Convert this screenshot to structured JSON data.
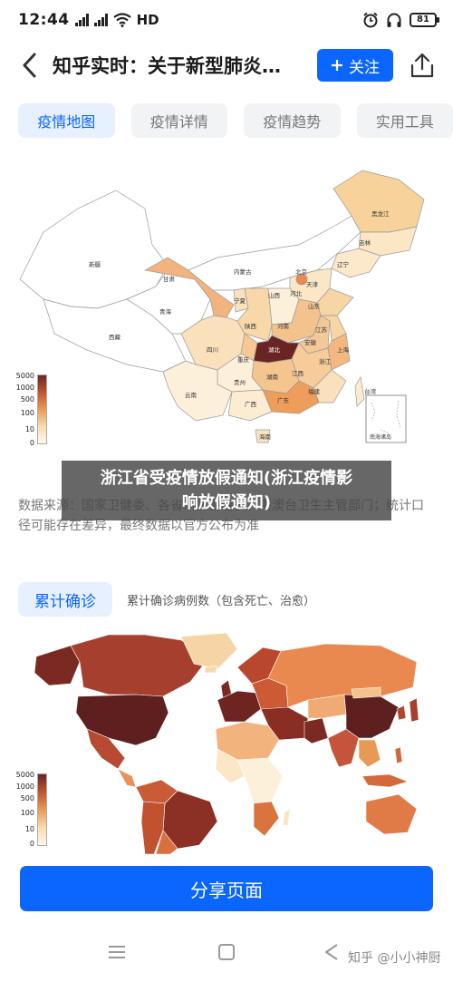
{
  "status": {
    "time": "12:44",
    "network": "HD",
    "battery": "81"
  },
  "nav": {
    "title": "知乎实时：关于新型肺炎…",
    "follow_label": "关注"
  },
  "tabs": [
    {
      "label": "疫情地图",
      "active": true
    },
    {
      "label": "疫情详情",
      "active": false
    },
    {
      "label": "疫情趋势",
      "active": false
    },
    {
      "label": "实用工具",
      "active": false
    }
  ],
  "china_map": {
    "legend": [
      "5000",
      "1000",
      "500",
      "100",
      "10",
      "0"
    ],
    "provinces": [
      "新疆",
      "西藏",
      "青海",
      "甘肃",
      "内蒙古",
      "黑龙江",
      "吉林",
      "辽宁",
      "北京",
      "天津",
      "河北",
      "山西",
      "陕西",
      "宁夏",
      "四川",
      "重庆",
      "湖北",
      "河南",
      "山东",
      "安徽",
      "江苏",
      "上海",
      "浙江",
      "江西",
      "湖南",
      "贵州",
      "云南",
      "广西",
      "广东",
      "福建",
      "台湾",
      "海南"
    ],
    "inset": "南海诸岛"
  },
  "overlay": {
    "line1": "浙江省受疫情放假通知(浙江疫情影",
    "line2": "响放假通知)"
  },
  "data_source": "数据来源：国家卫健委、各省市区卫健委、港澳台卫生主管部门；统计口径可能存在差异，最终数据以官方公布为准",
  "cumulative": {
    "label": "累计确诊",
    "desc": "累计确诊病例数（包含死亡、治愈）"
  },
  "world_map": {
    "legend": [
      "5000",
      "1000",
      "500",
      "100",
      "10",
      "0"
    ]
  },
  "share": {
    "label": "分享页面"
  },
  "watermark": "知乎 @小小神厨",
  "colors": {
    "accent": "#0a66ff",
    "map_dark": "#6b2424",
    "map_mid": "#e89a55",
    "map_light": "#fdf0db"
  }
}
